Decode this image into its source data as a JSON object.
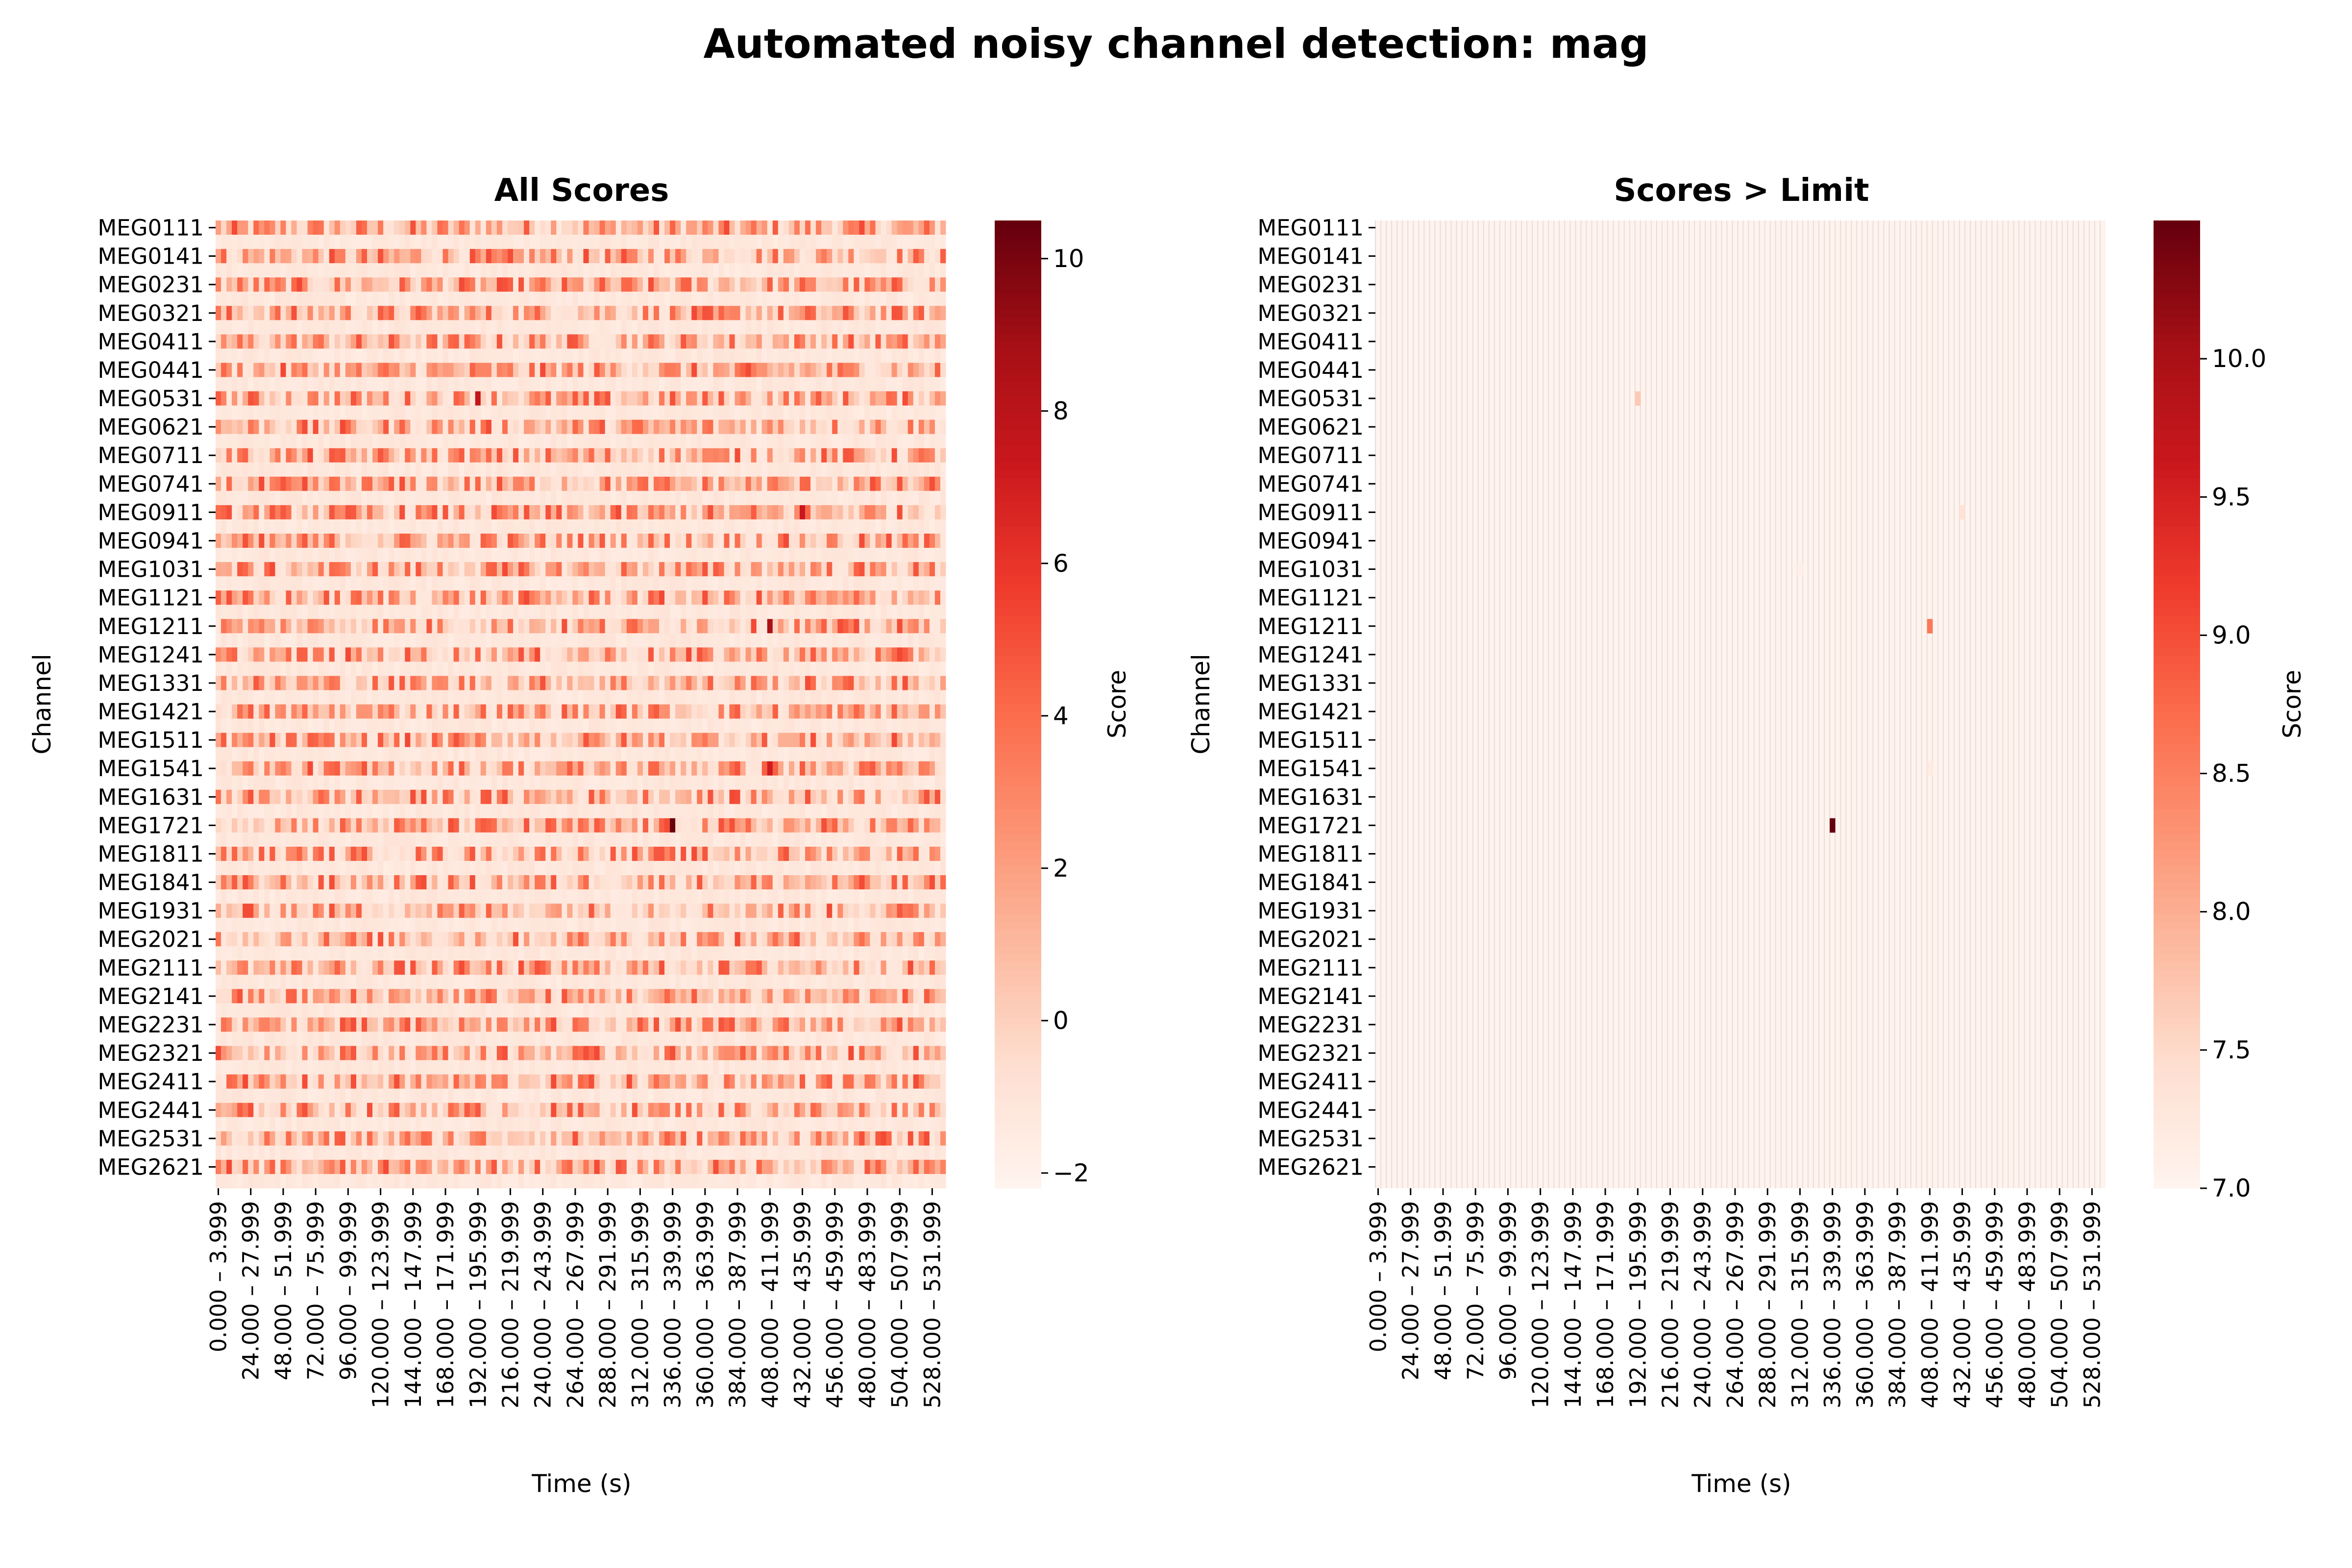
{
  "figure": {
    "suptitle": "Automated noisy channel detection: mag"
  },
  "chart_data": [
    {
      "type": "heatmap",
      "title": "All Scores",
      "xlabel": "Time (s)",
      "ylabel": "Channel",
      "colormap": "Reds",
      "colorbar": {
        "label": "Score",
        "range": [
          -2.2,
          10.5
        ],
        "ticks": [
          "−2",
          "0",
          "2",
          "4",
          "6",
          "8",
          "10"
        ],
        "tick_values": [
          -2,
          0,
          2,
          4,
          6,
          8,
          10
        ]
      },
      "value_range": [
        -2.2,
        10.5
      ],
      "notable_values": [
        {
          "channel": "MEG1721",
          "time": "336.000 – 339.999",
          "value": 10.5
        },
        {
          "channel": "MEG1211",
          "time": "408.000 – 411.999",
          "value": 8.6
        },
        {
          "channel": "MEG1541",
          "time": "408.000 – 411.999",
          "value": 7.2
        },
        {
          "channel": "MEG0531",
          "time": "192.000 – 195.999",
          "value": 7.7
        },
        {
          "channel": "MEG0911",
          "time": "432.000 – 435.999",
          "value": 7.4
        }
      ]
    },
    {
      "type": "heatmap",
      "title": "Scores > Limit",
      "xlabel": "Time (s)",
      "ylabel": "Channel",
      "colormap": "Reds",
      "colorbar": {
        "label": "Score",
        "range": [
          7.0,
          10.5
        ],
        "ticks": [
          "7.0",
          "7.5",
          "8.0",
          "8.5",
          "9.0",
          "9.5",
          "10.0"
        ],
        "tick_values": [
          7.0,
          7.5,
          8.0,
          8.5,
          9.0,
          9.5,
          10.0
        ]
      },
      "cells_above_limit": [
        {
          "channel": "MEG1721",
          "time": "336.000 – 339.999",
          "value": 10.5
        },
        {
          "channel": "MEG1211",
          "time": "408.000 – 411.999",
          "value": 8.6
        },
        {
          "channel": "MEG0531",
          "time": "192.000 – 195.999",
          "value": 7.7
        },
        {
          "channel": "MEG0911",
          "time": "432.000 – 435.999",
          "value": 7.4
        },
        {
          "channel": "MEG1541",
          "time": "408.000 – 411.999",
          "value": 7.2
        },
        {
          "channel": "MEG1031",
          "time": "312.000 – 315.999",
          "value": 7.1
        }
      ]
    }
  ],
  "channel_tick_labels": [
    "MEG0111",
    "MEG0141",
    "MEG0231",
    "MEG0321",
    "MEG0411",
    "MEG0441",
    "MEG0531",
    "MEG0621",
    "MEG0711",
    "MEG0741",
    "MEG0911",
    "MEG0941",
    "MEG1031",
    "MEG1121",
    "MEG1211",
    "MEG1241",
    "MEG1331",
    "MEG1421",
    "MEG1511",
    "MEG1541",
    "MEG1631",
    "MEG1721",
    "MEG1811",
    "MEG1841",
    "MEG1931",
    "MEG2021",
    "MEG2111",
    "MEG2141",
    "MEG2231",
    "MEG2321",
    "MEG2411",
    "MEG2441",
    "MEG2531",
    "MEG2621"
  ],
  "time_tick_labels": [
    "0.000 – 3.999",
    "24.000 – 27.999",
    "48.000 – 51.999",
    "72.000 – 75.999",
    "96.000 – 99.999",
    "120.000 – 123.999",
    "144.000 – 147.999",
    "168.000 – 171.999",
    "192.000 – 195.999",
    "216.000 – 219.999",
    "240.000 – 243.999",
    "264.000 – 267.999",
    "288.000 – 291.999",
    "312.000 – 315.999",
    "336.000 – 339.999",
    "360.000 – 363.999",
    "384.000 – 387.999",
    "408.000 – 411.999",
    "432.000 – 435.999",
    "456.000 – 459.999",
    "480.000 – 483.999",
    "504.000 – 507.999",
    "528.000 – 531.999"
  ]
}
